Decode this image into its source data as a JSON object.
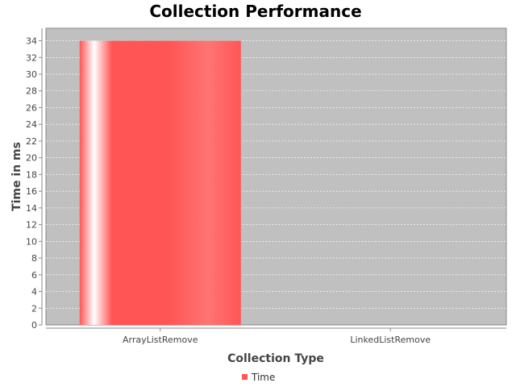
{
  "chart_data": {
    "type": "bar",
    "title": "Collection Performance",
    "xlabel": "Collection Type",
    "ylabel": "Time in ms",
    "categories": [
      "ArrayListRemove",
      "LinkedListRemove"
    ],
    "series": [
      {
        "name": "Time",
        "values": [
          34,
          0
        ],
        "color": "#ff5555"
      }
    ],
    "ylim": [
      0,
      35.5
    ],
    "yticks": [
      0,
      2,
      4,
      6,
      8,
      10,
      12,
      14,
      16,
      18,
      20,
      22,
      24,
      26,
      28,
      30,
      32,
      34
    ],
    "grid": true,
    "legend_position": "bottom",
    "plot_background": "#c0c0c0"
  }
}
